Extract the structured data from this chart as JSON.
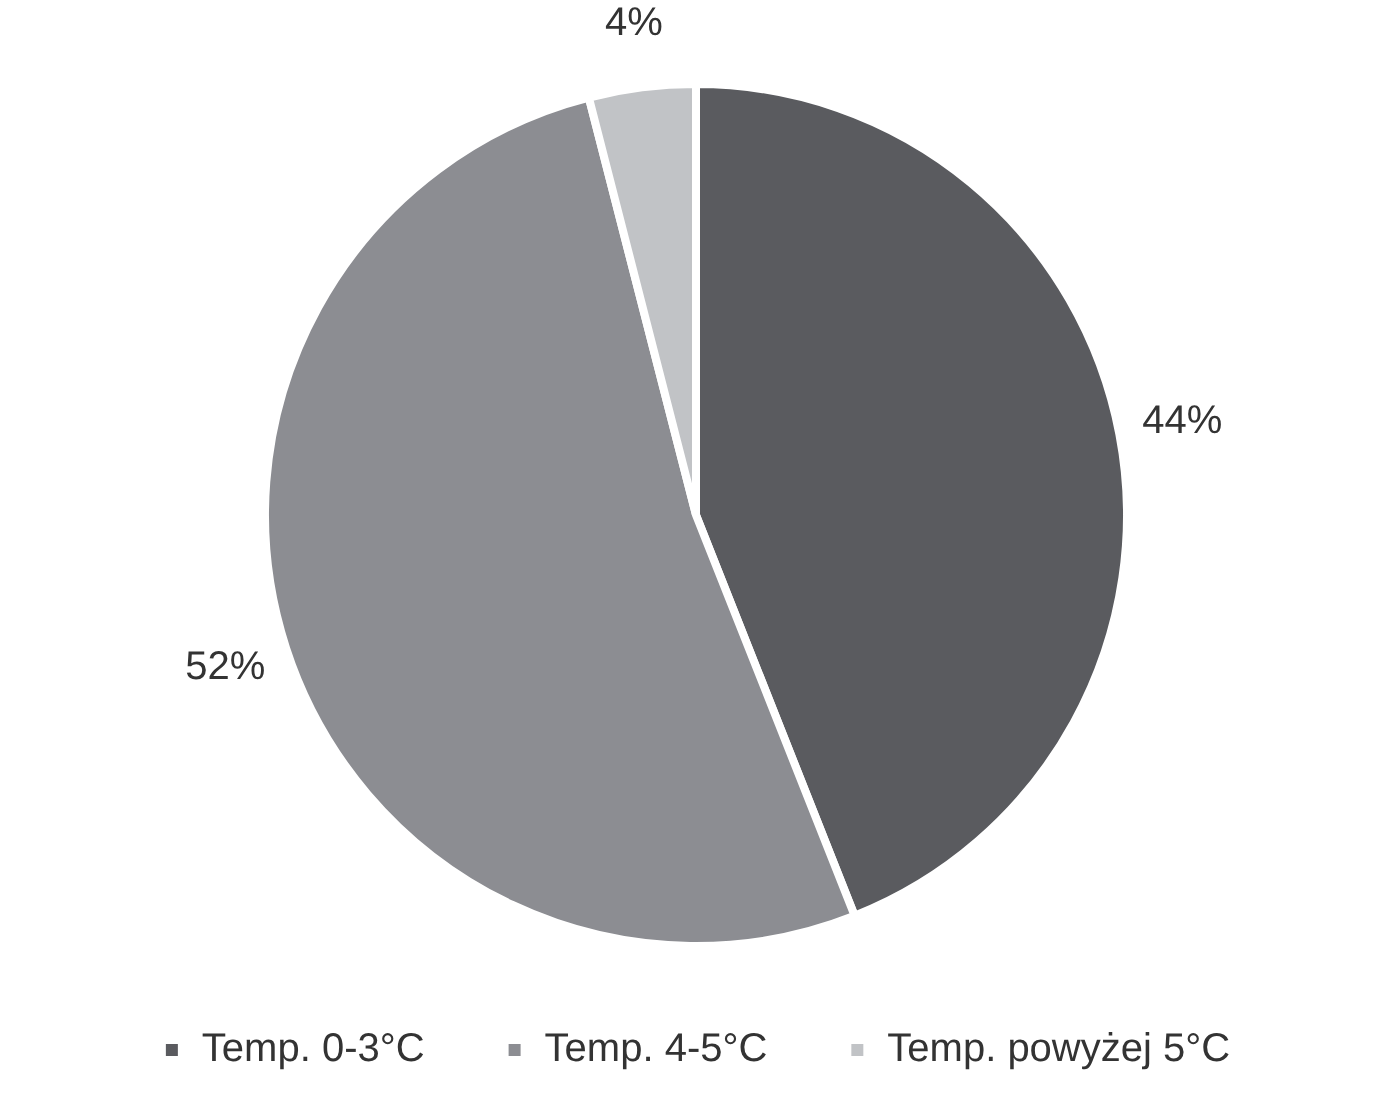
{
  "chart_data": {
    "type": "pie",
    "categories": [
      "Temp. 0-3°C",
      "Temp. 4-5°C",
      "Temp. powyżej 5°C"
    ],
    "values": [
      44,
      52,
      4
    ],
    "colors": [
      "#5a5b5f",
      "#8c8d92",
      "#c1c3c6"
    ],
    "value_labels": [
      "44%",
      "52%",
      "4%"
    ],
    "legend": "bottom"
  }
}
